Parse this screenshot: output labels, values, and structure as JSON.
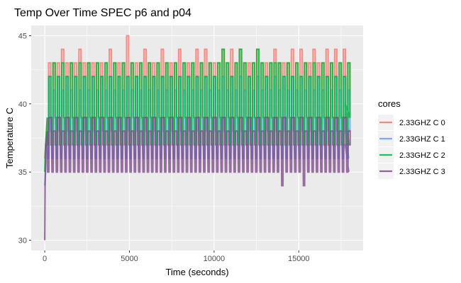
{
  "chart_data": {
    "type": "line",
    "title": "Temp Over Time SPEC p6 and p04",
    "xlabel": "Time (seconds)",
    "ylabel": "Temperature C",
    "xlim": [
      -800,
      18800
    ],
    "ylim": [
      29.25,
      45.75
    ],
    "x_ticks": [
      0,
      5000,
      10000,
      15000
    ],
    "y_ticks": [
      30,
      35,
      40,
      45
    ],
    "grid": true,
    "legend": {
      "title": "cores",
      "position": "right",
      "entries": [
        "2.33GHZ C 0",
        "2.33GHZ C 1",
        "2.33GHZ C 2",
        "2.33GHZ C 3"
      ]
    },
    "series": [
      {
        "name": "2.33GHZ C 0",
        "color": "#F8766D",
        "start": [
          [
            0,
            36
          ],
          [
            50,
            37
          ],
          [
            150,
            39
          ]
        ],
        "end": [
          [
            17750,
            39
          ],
          [
            17950,
            38
          ],
          [
            17950,
            38
          ]
        ],
        "peak_overrides": {
          "3": 44,
          "7": 44,
          "14": 44,
          "18": 45,
          "22": 44,
          "26": 44,
          "30": 44,
          "34": 44,
          "36": 44,
          "40": 44,
          "42": 44,
          "44": 44,
          "48": 44,
          "52": 44,
          "56": 44,
          "58": 44,
          "61": 44,
          "64": 44,
          "66": 44,
          "68": 44,
          "70": 44
        },
        "cycle": {
          "period": 256,
          "count": 70,
          "start": 150,
          "end": 18050,
          "low": 37,
          "mid": 39,
          "high": 43,
          "high_alt": 43,
          "rise_frac": 0.3,
          "fall_frac": 0.78
        }
      },
      {
        "name": "2.33GHZ C 1",
        "color": "#619CFF",
        "start": [
          [
            0,
            34
          ],
          [
            50,
            35
          ],
          [
            150,
            38
          ]
        ],
        "end": [
          [
            17750,
            38
          ],
          [
            17950,
            36
          ],
          [
            17950,
            36
          ]
        ],
        "peak_overrides": {},
        "cycle": {
          "period": 256,
          "count": 70,
          "start": 150,
          "end": 18050,
          "low": 36,
          "mid": 38,
          "high": 42,
          "high_alt": 41,
          "rise_frac": 0.36,
          "fall_frac": 0.8
        }
      },
      {
        "name": "2.33GHZ C 2",
        "color": "#00BA38",
        "start": [
          [
            0,
            35
          ],
          [
            50,
            37
          ],
          [
            150,
            39
          ]
        ],
        "end": [
          [
            17750,
            40
          ],
          [
            17950,
            37
          ],
          [
            17950,
            37
          ]
        ],
        "peak_overrides": {
          "40": 44,
          "44": 44,
          "48": 44,
          "52": 43
        },
        "cycle": {
          "period": 256,
          "count": 70,
          "start": 150,
          "end": 18050,
          "low": 37,
          "mid": 39,
          "high": 42,
          "high_alt": 43,
          "rise_frac": 0.33,
          "fall_frac": 0.82
        }
      },
      {
        "name": "2.33GHZ C 3",
        "color": "#7F4A8A",
        "start": [
          [
            0,
            30
          ],
          [
            20,
            34
          ],
          [
            60,
            37
          ],
          [
            150,
            38
          ]
        ],
        "end": [
          [
            17750,
            37
          ],
          [
            17950,
            35
          ],
          [
            17950,
            35
          ]
        ],
        "peak_overrides": {},
        "dips": {
          "54": 34,
          "59": 34
        },
        "cycle": {
          "period": 256,
          "count": 70,
          "start": 150,
          "end": 18050,
          "low": 35,
          "mid": 37,
          "high": 39,
          "high_alt": 38,
          "rise_frac": 0.4,
          "fall_frac": 0.85
        }
      }
    ]
  }
}
